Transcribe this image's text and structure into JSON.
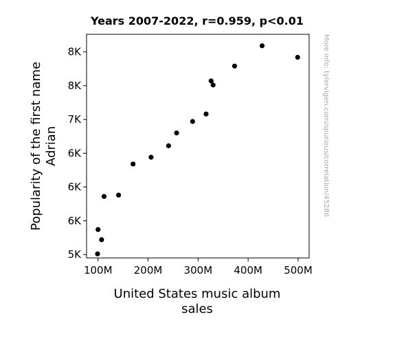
{
  "chart_data": {
    "type": "scatter",
    "title": "Years 2007-2022, r=0.959, p<0.01",
    "xlabel": [
      "United States music album",
      "sales"
    ],
    "ylabel": [
      "Popularity of the first name",
      "Adrian"
    ],
    "x_ticks": [
      {
        "value": 100,
        "label": "100M"
      },
      {
        "value": 200,
        "label": "200M"
      },
      {
        "value": 300,
        "label": "300M"
      },
      {
        "value": 400,
        "label": "400M"
      },
      {
        "value": 500,
        "label": "500M"
      }
    ],
    "y_ticks": [
      {
        "value": 5000,
        "label": "5K"
      },
      {
        "value": 5500,
        "label": "6K"
      },
      {
        "value": 6000,
        "label": "6K"
      },
      {
        "value": 6500,
        "label": "6K"
      },
      {
        "value": 7000,
        "label": "7K"
      },
      {
        "value": 7500,
        "label": "8K"
      },
      {
        "value": 8000,
        "label": "8K"
      }
    ],
    "xlim": [
      77,
      522
    ],
    "ylim": [
      4950,
      8260
    ],
    "points": [
      {
        "x": 99,
        "y": 5010
      },
      {
        "x": 107,
        "y": 5220
      },
      {
        "x": 100,
        "y": 5370
      },
      {
        "x": 112,
        "y": 5860
      },
      {
        "x": 141,
        "y": 5880
      },
      {
        "x": 170,
        "y": 6340
      },
      {
        "x": 206,
        "y": 6440
      },
      {
        "x": 241,
        "y": 6610
      },
      {
        "x": 257,
        "y": 6800
      },
      {
        "x": 289,
        "y": 6970
      },
      {
        "x": 316,
        "y": 7080
      },
      {
        "x": 326,
        "y": 7570
      },
      {
        "x": 330,
        "y": 7510
      },
      {
        "x": 373,
        "y": 7790
      },
      {
        "x": 428,
        "y": 8090
      },
      {
        "x": 499,
        "y": 7920
      }
    ],
    "point_color": "#000000",
    "grid": false,
    "legend": "none"
  },
  "watermark": "More info: tylervigen.com/spurious/correlation/45286"
}
